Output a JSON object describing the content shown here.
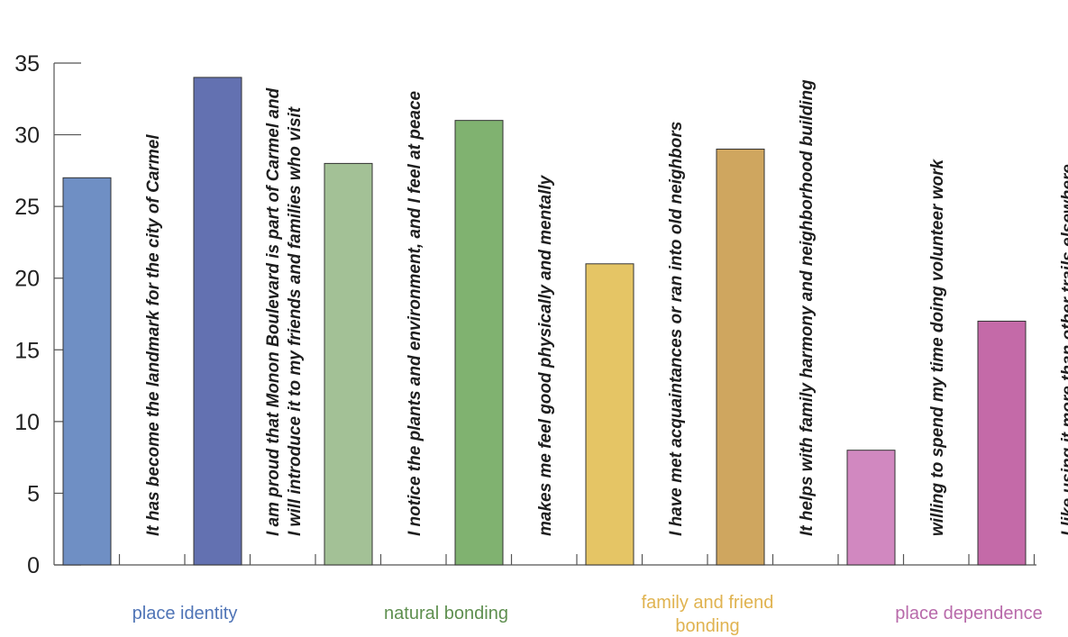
{
  "chart_data": {
    "type": "bar",
    "ylim": [
      0,
      35
    ],
    "yticks": [
      0,
      5,
      10,
      15,
      20,
      25,
      30,
      35
    ],
    "grid": false,
    "bars": [
      {
        "label": "It has become the landmark for the city of Carmel",
        "value": 27,
        "color": "#6f8fc4",
        "group": 0
      },
      {
        "label": "I am proud that Monon Boulevard is part of Carmel and|I will introduce it to my friends and families who visit",
        "value": 34,
        "color": "#6371b1",
        "group": 0
      },
      {
        "label": "I notice the plants and environment, and I feel at peace",
        "value": 28,
        "color": "#a3c196",
        "group": 1
      },
      {
        "label": "makes me feel good physically and mentally",
        "value": 31,
        "color": "#80b270",
        "group": 1
      },
      {
        "label": "I have met acquaintances or ran into old neighbors",
        "value": 21,
        "color": "#e5c565",
        "group": 2
      },
      {
        "label": "It helps with family harmony and neighborhood building",
        "value": 29,
        "color": "#cfa65f",
        "group": 2
      },
      {
        "label": "willing to spend my time doing volunteer work",
        "value": 8,
        "color": "#d188c0",
        "group": 3
      },
      {
        "label": "I like using it more than other trails elsewhere",
        "value": 17,
        "color": "#c46aa8",
        "group": 3
      }
    ],
    "groups": [
      {
        "name": "place identity",
        "color": "#4f74b6"
      },
      {
        "name": "natural bonding",
        "color": "#5e8f4f"
      },
      {
        "name": "family and friend|bonding",
        "color": "#e0b350"
      },
      {
        "name": "place dependence",
        "color": "#b86aaa"
      }
    ]
  }
}
